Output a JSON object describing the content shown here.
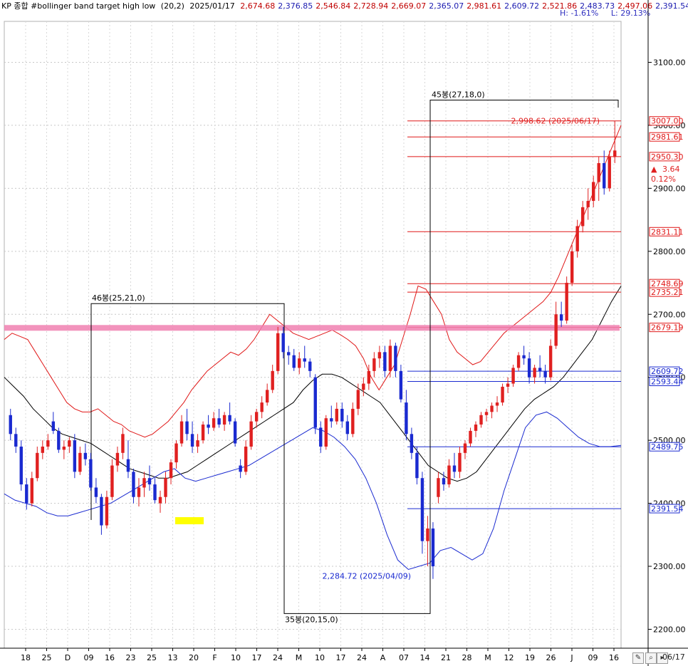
{
  "header": {
    "title": "KP 종합 #bollinger band target high low",
    "params": "(20,2)",
    "date": "2025/01/17",
    "values": [
      "2,674.68",
      "2,376.85",
      "2,546.84",
      "2,728.94",
      "2,669.07",
      "2,365.07",
      "2,981.61",
      "2,609.72",
      "2,521.86",
      "2,483.73",
      "2,497.06",
      "2,391.54"
    ],
    "value_colors": [
      "#c00000",
      "#1a1ab0",
      "#c00000",
      "#c00000",
      "#c00000",
      "#1a1ab0",
      "#c00000",
      "#1a1ab0",
      "#c00000",
      "#1a1ab0",
      "#c00000",
      "#1a1ab0"
    ],
    "h_label": "H: -1.61%",
    "l_label": "L: 29.13%"
  },
  "footer": {
    "date_label": "06/17"
  },
  "colors": {
    "up": "#e02020",
    "down": "#1a2ad0",
    "upper_band": "#e01818",
    "mid_band": "#000000",
    "lower_band": "#1a2ad0",
    "pink": "#f080b0",
    "yellow": "#ffff00"
  },
  "chart_data": {
    "type": "candlestick",
    "title": "KP 종합 #bollinger band target high low",
    "y_ticks": [
      "3100.00",
      "3000.00",
      "2900.00",
      "2800.00",
      "2700.00",
      "2600.00",
      "2500.00",
      "2400.00",
      "2300.00",
      "2200.00"
    ],
    "ylim": [
      2170,
      3165
    ],
    "x_labels": [
      "18",
      "25",
      "D",
      "09",
      "16",
      "23",
      "25",
      "13",
      "20",
      "F",
      "10",
      "17",
      "24",
      "M",
      "10",
      "17",
      "24",
      "A",
      "07",
      "14",
      "21",
      "28",
      "M",
      "12",
      "19",
      "26",
      "J",
      "09",
      "16"
    ],
    "price_tags": [
      {
        "text": "3007.00",
        "color": "#e01818"
      },
      {
        "text": "2981.61",
        "color": "#e01818"
      },
      {
        "text": "2950.30",
        "color": "#e01818"
      },
      {
        "text": "2831.11",
        "color": "#e01818"
      },
      {
        "text": "2748.69",
        "color": "#e01818"
      },
      {
        "text": "2735.21",
        "color": "#e01818"
      },
      {
        "text": "2679.19",
        "color": "#e01818"
      },
      {
        "text": "2609.72",
        "color": "#1a2ad0"
      },
      {
        "text": "2593.44",
        "color": "#1a2ad0"
      },
      {
        "text": "2489.75",
        "color": "#1a2ad0"
      },
      {
        "text": "2391.54",
        "color": "#1a2ad0"
      }
    ],
    "tag_values": [
      3007,
      2981.61,
      2950.3,
      2831.11,
      2748.69,
      2735.21,
      2679.19,
      2609.72,
      2593.44,
      2489.75,
      2391.54
    ],
    "change_info": {
      "arrow": "▲",
      "diff": "3.64",
      "pct": "0.12%"
    },
    "annotations": [
      {
        "text": "46봉(25,21,0)"
      },
      {
        "text": "35봉(20,15,0)"
      },
      {
        "text": "45봉(27,18,0)"
      },
      {
        "text": "2,998.62 (2025/06/17)"
      },
      {
        "text": "2,284.72 (2025/04/09)"
      }
    ],
    "candles": [
      [
        2540,
        2550,
        2500,
        2510
      ],
      [
        2510,
        2520,
        2480,
        2490
      ],
      [
        2490,
        2500,
        2420,
        2430
      ],
      [
        2430,
        2440,
        2390,
        2400
      ],
      [
        2400,
        2450,
        2395,
        2440
      ],
      [
        2440,
        2490,
        2435,
        2480
      ],
      [
        2480,
        2500,
        2470,
        2490
      ],
      [
        2490,
        2510,
        2485,
        2500
      ],
      [
        2530,
        2545,
        2510,
        2515
      ],
      [
        2515,
        2520,
        2480,
        2485
      ],
      [
        2485,
        2500,
        2470,
        2490
      ],
      [
        2490,
        2505,
        2480,
        2500
      ],
      [
        2500,
        2510,
        2440,
        2450
      ],
      [
        2450,
        2490,
        2445,
        2480
      ],
      [
        2480,
        2495,
        2460,
        2470
      ],
      [
        2470,
        2480,
        2420,
        2425
      ],
      [
        2425,
        2440,
        2400,
        2410
      ],
      [
        2410,
        2415,
        2350,
        2365
      ],
      [
        2365,
        2420,
        2360,
        2410
      ],
      [
        2410,
        2470,
        2405,
        2460
      ],
      [
        2460,
        2490,
        2450,
        2480
      ],
      [
        2480,
        2520,
        2470,
        2510
      ],
      [
        2470,
        2500,
        2440,
        2450
      ],
      [
        2450,
        2455,
        2400,
        2410
      ],
      [
        2410,
        2440,
        2395,
        2425
      ],
      [
        2425,
        2450,
        2410,
        2440
      ],
      [
        2440,
        2460,
        2420,
        2430
      ],
      [
        2430,
        2440,
        2400,
        2405
      ],
      [
        2400,
        2420,
        2385,
        2410
      ],
      [
        2410,
        2450,
        2400,
        2440
      ],
      [
        2440,
        2470,
        2430,
        2465
      ],
      [
        2465,
        2500,
        2455,
        2495
      ],
      [
        2495,
        2540,
        2490,
        2530
      ],
      [
        2530,
        2550,
        2500,
        2510
      ],
      [
        2510,
        2530,
        2480,
        2490
      ],
      [
        2490,
        2510,
        2480,
        2500
      ],
      [
        2500,
        2530,
        2495,
        2525
      ],
      [
        2525,
        2540,
        2510,
        2520
      ],
      [
        2520,
        2545,
        2515,
        2535
      ],
      [
        2535,
        2550,
        2520,
        2525
      ],
      [
        2525,
        2545,
        2515,
        2540
      ],
      [
        2540,
        2560,
        2525,
        2530
      ],
      [
        2530,
        2535,
        2490,
        2495
      ],
      [
        2460,
        2470,
        2440,
        2450
      ],
      [
        2450,
        2500,
        2445,
        2490
      ],
      [
        2490,
        2540,
        2485,
        2530
      ],
      [
        2530,
        2550,
        2520,
        2545
      ],
      [
        2545,
        2570,
        2535,
        2560
      ],
      [
        2560,
        2590,
        2555,
        2580
      ],
      [
        2580,
        2620,
        2575,
        2610
      ],
      [
        2610,
        2680,
        2605,
        2670
      ],
      [
        2670,
        2680,
        2630,
        2640
      ],
      [
        2640,
        2650,
        2620,
        2635
      ],
      [
        2635,
        2645,
        2610,
        2615
      ],
      [
        2615,
        2640,
        2605,
        2630
      ],
      [
        2630,
        2650,
        2615,
        2625
      ],
      [
        2625,
        2630,
        2600,
        2610
      ],
      [
        2600,
        2605,
        2510,
        2520
      ],
      [
        2520,
        2530,
        2480,
        2490
      ],
      [
        2490,
        2540,
        2485,
        2535
      ],
      [
        2535,
        2555,
        2520,
        2530
      ],
      [
        2530,
        2560,
        2525,
        2550
      ],
      [
        2550,
        2560,
        2520,
        2530
      ],
      [
        2530,
        2540,
        2500,
        2510
      ],
      [
        2510,
        2560,
        2505,
        2550
      ],
      [
        2550,
        2590,
        2540,
        2580
      ],
      [
        2580,
        2600,
        2570,
        2590
      ],
      [
        2590,
        2620,
        2580,
        2610
      ],
      [
        2610,
        2640,
        2600,
        2630
      ],
      [
        2630,
        2650,
        2615,
        2640
      ],
      [
        2640,
        2650,
        2600,
        2610
      ],
      [
        2610,
        2660,
        2600,
        2650
      ],
      [
        2650,
        2655,
        2600,
        2610
      ],
      [
        2610,
        2620,
        2560,
        2565
      ],
      [
        2560,
        2580,
        2500,
        2510
      ],
      [
        2510,
        2520,
        2470,
        2480
      ],
      [
        2480,
        2490,
        2430,
        2440
      ],
      [
        2440,
        2450,
        2320,
        2340
      ],
      [
        2340,
        2380,
        2300,
        2360
      ],
      [
        2360,
        2370,
        2280,
        2300
      ],
      [
        2410,
        2450,
        2400,
        2440
      ],
      [
        2440,
        2450,
        2420,
        2430
      ],
      [
        2430,
        2470,
        2425,
        2460
      ],
      [
        2460,
        2480,
        2440,
        2450
      ],
      [
        2450,
        2490,
        2440,
        2480
      ],
      [
        2480,
        2500,
        2470,
        2495
      ],
      [
        2495,
        2520,
        2490,
        2515
      ],
      [
        2515,
        2530,
        2505,
        2525
      ],
      [
        2525,
        2545,
        2520,
        2540
      ],
      [
        2540,
        2550,
        2530,
        2545
      ],
      [
        2545,
        2560,
        2535,
        2555
      ],
      [
        2555,
        2570,
        2545,
        2560
      ],
      [
        2560,
        2590,
        2555,
        2585
      ],
      [
        2585,
        2600,
        2575,
        2590
      ],
      [
        2590,
        2620,
        2585,
        2615
      ],
      [
        2615,
        2640,
        2610,
        2635
      ],
      [
        2635,
        2650,
        2620,
        2630
      ],
      [
        2630,
        2640,
        2590,
        2600
      ],
      [
        2600,
        2620,
        2590,
        2615
      ],
      [
        2615,
        2635,
        2600,
        2610
      ],
      [
        2610,
        2620,
        2590,
        2600
      ],
      [
        2600,
        2660,
        2595,
        2650
      ],
      [
        2650,
        2720,
        2645,
        2700
      ],
      [
        2700,
        2720,
        2680,
        2690
      ],
      [
        2690,
        2760,
        2685,
        2750
      ],
      [
        2750,
        2810,
        2745,
        2800
      ],
      [
        2800,
        2850,
        2790,
        2840
      ],
      [
        2840,
        2880,
        2830,
        2870
      ],
      [
        2870,
        2900,
        2850,
        2880
      ],
      [
        2880,
        2920,
        2870,
        2910
      ],
      [
        2910,
        2950,
        2880,
        2940
      ],
      [
        2940,
        2960,
        2890,
        2900
      ],
      [
        2900,
        2960,
        2895,
        2950
      ],
      [
        2950,
        3007,
        2940,
        2960
      ]
    ],
    "upper_band": [
      2660,
      2670,
      2665,
      2660,
      2640,
      2620,
      2600,
      2580,
      2560,
      2550,
      2545,
      2545,
      2550,
      2540,
      2530,
      2525,
      2515,
      2510,
      2505,
      2510,
      2520,
      2530,
      2545,
      2560,
      2580,
      2595,
      2610,
      2620,
      2630,
      2640,
      2635,
      2645,
      2660,
      2680,
      2700,
      2690,
      2680,
      2670,
      2665,
      2660,
      2665,
      2670,
      2675,
      2668,
      2660,
      2650,
      2630,
      2600,
      2580,
      2600,
      2620,
      2660,
      2700,
      2745,
      2740,
      2720,
      2700,
      2660,
      2640,
      2630,
      2620,
      2625,
      2640,
      2655,
      2670,
      2680,
      2690,
      2700,
      2710,
      2720,
      2735,
      2760,
      2790,
      2820,
      2850,
      2880,
      2910,
      2940,
      2970,
      3000
    ],
    "mid_band": [
      2600,
      2585,
      2570,
      2550,
      2535,
      2520,
      2510,
      2505,
      2500,
      2495,
      2485,
      2475,
      2465,
      2455,
      2450,
      2445,
      2440,
      2440,
      2445,
      2450,
      2460,
      2470,
      2480,
      2490,
      2500,
      2510,
      2520,
      2530,
      2540,
      2550,
      2560,
      2580,
      2595,
      2605,
      2605,
      2600,
      2590,
      2580,
      2570,
      2560,
      2540,
      2520,
      2500,
      2480,
      2460,
      2450,
      2440,
      2435,
      2440,
      2450,
      2470,
      2490,
      2510,
      2530,
      2550,
      2565,
      2575,
      2585,
      2600,
      2620,
      2640,
      2660,
      2690,
      2720,
      2745
    ],
    "lower_band": [
      2415,
      2405,
      2400,
      2395,
      2385,
      2380,
      2380,
      2385,
      2390,
      2395,
      2400,
      2410,
      2420,
      2430,
      2440,
      2450,
      2455,
      2440,
      2435,
      2440,
      2445,
      2450,
      2455,
      2460,
      2470,
      2480,
      2490,
      2500,
      2510,
      2520,
      2515,
      2505,
      2490,
      2470,
      2440,
      2400,
      2350,
      2310,
      2295,
      2300,
      2305,
      2325,
      2330,
      2320,
      2310,
      2320,
      2360,
      2420,
      2470,
      2520,
      2540,
      2545,
      2535,
      2520,
      2505,
      2495,
      2490,
      2490,
      2492
    ]
  }
}
